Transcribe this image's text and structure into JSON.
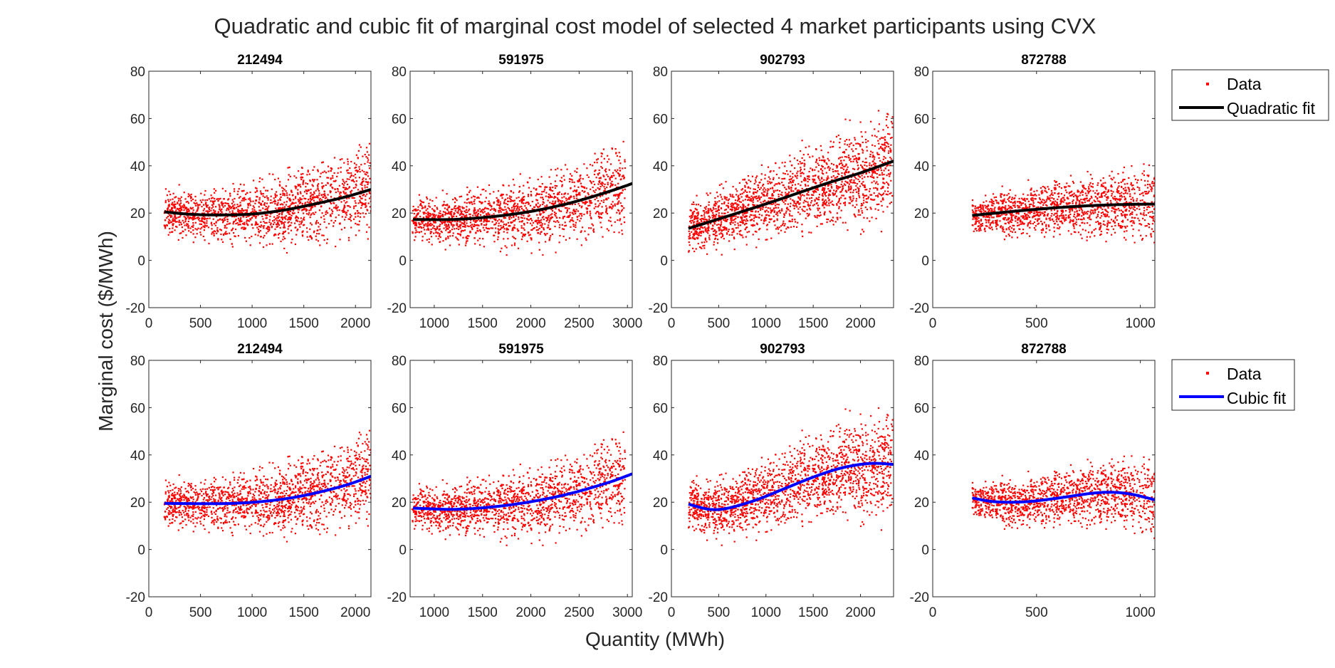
{
  "figure": {
    "title": "Quadratic and cubic fit of marginal cost model of selected 4 market participants using CVX",
    "xlabel": "Quantity (MWh)",
    "ylabel": "Marginal cost ($/MWh)",
    "colors": {
      "data": "#ff0000",
      "quadratic_fit": "#000000",
      "cubic_fit": "#0000ff"
    }
  },
  "legends": [
    {
      "row": 0,
      "entries": [
        "Data",
        "Quadratic fit"
      ]
    },
    {
      "row": 1,
      "entries": [
        "Data",
        "Cubic fit"
      ]
    }
  ],
  "chart_data": [
    {
      "type": "scatter",
      "row": 0,
      "title": "212494",
      "fit": "Quadratic fit",
      "xlim": [
        0,
        2150
      ],
      "ylim": [
        -20,
        80
      ],
      "xticks": [
        0,
        500,
        1000,
        1500,
        2000
      ],
      "yticks": [
        -20,
        0,
        20,
        40,
        60,
        80
      ],
      "scatter_spec": {
        "xrange": [
          150,
          2150
        ],
        "count": 1600,
        "noise": 5.5,
        "seed": 11
      },
      "fit_points": {
        "x": [
          150,
          400,
          700,
          1000,
          1300,
          1600,
          1900,
          2150
        ],
        "y": [
          20.5,
          19.5,
          19.2,
          19.6,
          21.2,
          23.8,
          26.8,
          30
        ]
      }
    },
    {
      "type": "scatter",
      "row": 0,
      "title": "591975",
      "fit": "Quadratic fit",
      "xlim": [
        750,
        3050
      ],
      "ylim": [
        -20,
        80
      ],
      "xticks": [
        1000,
        1500,
        2000,
        2500,
        3000
      ],
      "yticks": [
        -20,
        0,
        20,
        40,
        60,
        80
      ],
      "scatter_spec": {
        "xrange": [
          770,
          2980
        ],
        "count": 1600,
        "noise": 5.5,
        "seed": 23
      },
      "fit_points": {
        "x": [
          780,
          1200,
          1600,
          2000,
          2400,
          2800,
          3050
        ],
        "y": [
          17.3,
          17.3,
          18.5,
          20.7,
          24.2,
          29,
          32.5
        ]
      }
    },
    {
      "type": "scatter",
      "row": 0,
      "title": "902793",
      "fit": "Quadratic fit",
      "xlim": [
        0,
        2350
      ],
      "ylim": [
        -20,
        80
      ],
      "xticks": [
        0,
        500,
        1000,
        1500,
        2000
      ],
      "yticks": [
        -20,
        0,
        20,
        40,
        60,
        80
      ],
      "scatter_spec": {
        "xrange": [
          180,
          2340
        ],
        "count": 1800,
        "noise": 6.5,
        "seed": 37
      },
      "fit_points": {
        "x": [
          180,
          500,
          800,
          1100,
          1400,
          1700,
          2000,
          2350
        ],
        "y": [
          13.5,
          17.5,
          21.3,
          25.2,
          29.3,
          33.3,
          37,
          42
        ]
      }
    },
    {
      "type": "scatter",
      "row": 0,
      "title": "872788",
      "fit": "Quadratic fit",
      "xlim": [
        0,
        1070
      ],
      "ylim": [
        -20,
        80
      ],
      "xticks": [
        0,
        500,
        1000
      ],
      "yticks": [
        -20,
        0,
        20,
        40,
        60,
        80
      ],
      "scatter_spec": {
        "xrange": [
          190,
          1070
        ],
        "count": 1400,
        "noise": 4.8,
        "seed": 53
      },
      "fit_points": {
        "x": [
          190,
          350,
          500,
          650,
          800,
          950,
          1070
        ],
        "y": [
          19,
          20.4,
          21.6,
          22.6,
          23.3,
          23.7,
          23.8
        ]
      }
    },
    {
      "type": "scatter",
      "row": 1,
      "title": "212494",
      "fit": "Cubic fit",
      "xlim": [
        0,
        2150
      ],
      "ylim": [
        -20,
        80
      ],
      "xticks": [
        0,
        500,
        1000,
        1500,
        2000
      ],
      "yticks": [
        -20,
        0,
        20,
        40,
        60,
        80
      ],
      "scatter_spec": {
        "xrange": [
          150,
          2150
        ],
        "count": 1600,
        "noise": 5.5,
        "seed": 11
      },
      "fit_points": {
        "x": [
          150,
          500,
          800,
          1100,
          1400,
          1700,
          1950,
          2150
        ],
        "y": [
          19.5,
          19.4,
          19.5,
          20.3,
          22,
          24.8,
          27.8,
          31
        ]
      }
    },
    {
      "type": "scatter",
      "row": 1,
      "title": "591975",
      "fit": "Cubic fit",
      "xlim": [
        750,
        3050
      ],
      "ylim": [
        -20,
        80
      ],
      "xticks": [
        1000,
        1500,
        2000,
        2500,
        3000
      ],
      "yticks": [
        -20,
        0,
        20,
        40,
        60,
        80
      ],
      "scatter_spec": {
        "xrange": [
          770,
          2980
        ],
        "count": 1600,
        "noise": 5.5,
        "seed": 23
      },
      "fit_points": {
        "x": [
          780,
          1200,
          1600,
          2000,
          2400,
          2800,
          3050
        ],
        "y": [
          17.5,
          17,
          18,
          20.2,
          23.6,
          28.3,
          32
        ]
      }
    },
    {
      "type": "scatter",
      "row": 1,
      "title": "902793",
      "fit": "Cubic fit",
      "xlim": [
        0,
        2350
      ],
      "ylim": [
        -20,
        80
      ],
      "xticks": [
        0,
        500,
        1000,
        1500,
        2000
      ],
      "yticks": [
        -20,
        0,
        20,
        40,
        60,
        80
      ],
      "scatter_spec": {
        "xrange": [
          180,
          2340
        ],
        "count": 1800,
        "noise": 6.5,
        "seed": 37
      },
      "fit_points": {
        "x": [
          180,
          400,
          600,
          900,
          1200,
          1500,
          1800,
          2100,
          2350
        ],
        "y": [
          19.2,
          17,
          17.5,
          21,
          25.8,
          30.6,
          34.5,
          36.4,
          36
        ]
      }
    },
    {
      "type": "scatter",
      "row": 1,
      "title": "872788",
      "fit": "Cubic fit",
      "xlim": [
        0,
        1070
      ],
      "ylim": [
        -20,
        80
      ],
      "xticks": [
        0,
        500,
        1000
      ],
      "yticks": [
        -20,
        0,
        20,
        40,
        60,
        80
      ],
      "scatter_spec": {
        "xrange": [
          190,
          1070
        ],
        "count": 1400,
        "noise": 4.8,
        "seed": 53
      },
      "fit_points": {
        "x": [
          190,
          300,
          450,
          600,
          750,
          850,
          950,
          1070
        ],
        "y": [
          21.8,
          20.2,
          20.2,
          21.7,
          23.6,
          24.2,
          23.5,
          21
        ]
      }
    }
  ]
}
